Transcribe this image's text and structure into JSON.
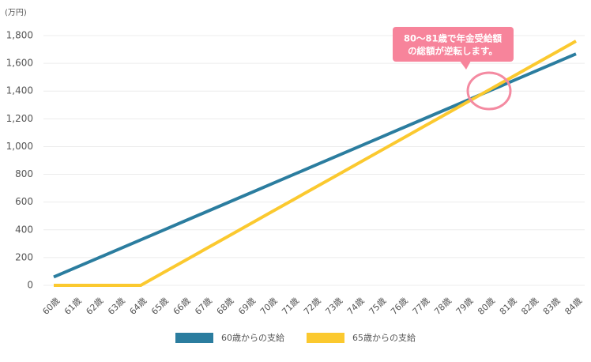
{
  "chart_data": {
    "type": "line",
    "unit_label": "(万円)",
    "annotation": [
      "80～81歳で年金受給額",
      "の総額が逆転します。"
    ],
    "categories": [
      "60歳",
      "61歳",
      "62歳",
      "63歳",
      "64歳",
      "65歳",
      "66歳",
      "67歳",
      "68歳",
      "69歳",
      "70歳",
      "71歳",
      "72歳",
      "73歳",
      "74歳",
      "75歳",
      "76歳",
      "77歳",
      "78歳",
      "79歳",
      "80歳",
      "81歳",
      "82歳",
      "83歳",
      "84歳"
    ],
    "series": [
      {
        "name": "60歳からの支給",
        "color": "#2b7d9f",
        "values": [
          60,
          127,
          194,
          261,
          328,
          395,
          462,
          529,
          596,
          663,
          730,
          797,
          864,
          931,
          998,
          1065,
          1132,
          1199,
          1266,
          1333,
          1400,
          1467,
          1534,
          1601,
          1668
        ]
      },
      {
        "name": "65歳からの支給",
        "color": "#fbc92f",
        "values": [
          0,
          0,
          0,
          0,
          0,
          88,
          176,
          264,
          352,
          440,
          528,
          616,
          704,
          792,
          880,
          968,
          1056,
          1144,
          1232,
          1320,
          1408,
          1496,
          1584,
          1672,
          1760
        ]
      }
    ],
    "ylim": [
      0,
      1800
    ],
    "yticks": [
      0,
      200,
      400,
      600,
      800,
      {
        "value": 1000,
        "label": "1,000"
      },
      {
        "value": 1200,
        "label": "1,200"
      },
      {
        "value": 1400,
        "label": "1,400"
      },
      {
        "value": 1600,
        "label": "1,600"
      },
      {
        "value": 1800,
        "label": "1,800"
      }
    ],
    "grid": true
  }
}
